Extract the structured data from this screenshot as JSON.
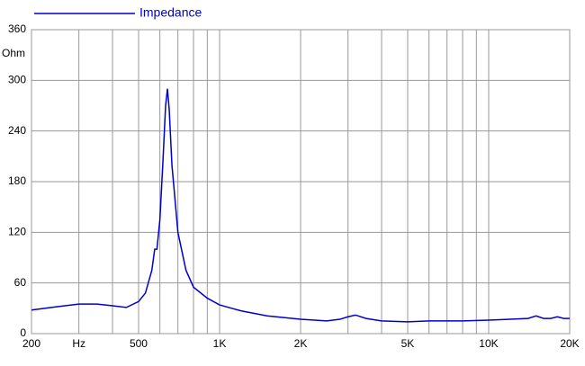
{
  "chart_data": {
    "type": "line",
    "y_label": "Ohm",
    "log_x": true,
    "series": [
      {
        "name": "Impedance",
        "color": "#0000cc",
        "x": [
          200,
          250,
          300,
          350,
          400,
          450,
          500,
          530,
          560,
          574,
          585,
          600,
          615,
          630,
          640,
          650,
          665,
          700,
          750,
          800,
          900,
          1000,
          1200,
          1500,
          2000,
          2500,
          2800,
          3000,
          3200,
          3500,
          4000,
          5000,
          6000,
          8000,
          10000,
          12000,
          14000,
          15000,
          16000,
          17000,
          18000,
          19000,
          20000
        ],
        "values": [
          28,
          32,
          35,
          35,
          33,
          31,
          38,
          48,
          75,
          100,
          100,
          135,
          200,
          270,
          290,
          265,
          200,
          120,
          75,
          55,
          42,
          34,
          27,
          21,
          17,
          15,
          17,
          20,
          22,
          18,
          15,
          14,
          15,
          15,
          16,
          17,
          18,
          21,
          18,
          18,
          20,
          18,
          18
        ]
      }
    ],
    "xlim": [
      200,
      20000
    ],
    "xticks": [
      200,
      {
        "value": 300,
        "label": "Hz"
      },
      500,
      {
        "value": 1000,
        "label": "1K"
      },
      {
        "value": 2000,
        "label": "2K"
      },
      {
        "value": 5000,
        "label": "5K"
      },
      {
        "value": 10000,
        "label": "10K"
      },
      {
        "value": 20000,
        "label": "20K"
      }
    ],
    "x_minor_ticks": [
      400,
      600,
      700,
      800,
      900,
      3000,
      4000,
      6000,
      7000,
      8000,
      9000
    ],
    "ylim": [
      0,
      360
    ],
    "yticks": [
      0,
      60,
      120,
      180,
      240,
      300,
      360
    ],
    "grid": true
  }
}
